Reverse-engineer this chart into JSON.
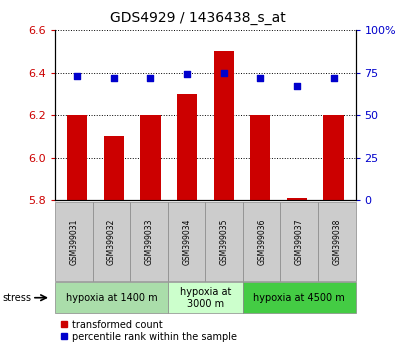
{
  "title": "GDS4929 / 1436438_s_at",
  "samples": [
    "GSM399031",
    "GSM399032",
    "GSM399033",
    "GSM399034",
    "GSM399035",
    "GSM399036",
    "GSM399037",
    "GSM399038"
  ],
  "bar_values": [
    6.2,
    6.1,
    6.2,
    6.3,
    6.5,
    6.2,
    5.81,
    6.2
  ],
  "dot_values": [
    73,
    72,
    72,
    74,
    75,
    72,
    67,
    72
  ],
  "ylim_left": [
    5.8,
    6.6
  ],
  "ylim_right": [
    0,
    100
  ],
  "yticks_left": [
    5.8,
    6.0,
    6.2,
    6.4,
    6.6
  ],
  "yticks_right": [
    0,
    25,
    50,
    75,
    100
  ],
  "bar_color": "#cc0000",
  "dot_color": "#0000cc",
  "bar_bottom": 5.8,
  "group_configs": [
    {
      "sample_indices": [
        0,
        1,
        2
      ],
      "label": "hypoxia at 1400 m",
      "color": "#aaddaa"
    },
    {
      "sample_indices": [
        3,
        4
      ],
      "label": "hypoxia at\n3000 m",
      "color": "#ccffcc"
    },
    {
      "sample_indices": [
        5,
        6,
        7
      ],
      "label": "hypoxia at 4500 m",
      "color": "#44cc44"
    }
  ],
  "legend_bar_label": "transformed count",
  "legend_dot_label": "percentile rank within the sample",
  "stress_label": "stress"
}
